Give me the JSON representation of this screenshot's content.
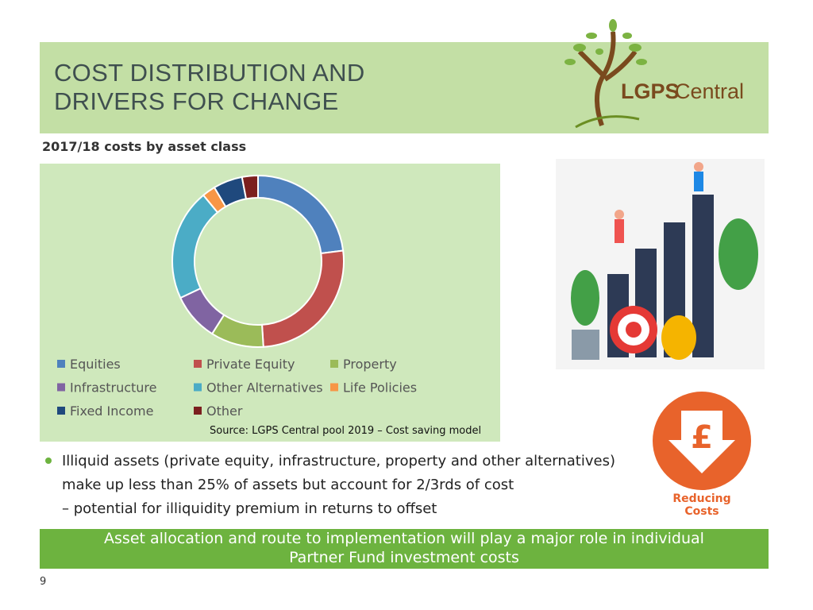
{
  "header": {
    "title_lines": [
      "COST DISTRIBUTION AND",
      "DRIVERS FOR CHANGE"
    ],
    "logo": [
      "LGPS",
      "Central"
    ]
  },
  "chart_data": {
    "type": "pie",
    "donut": true,
    "title": "2017/18 costs by asset class",
    "categories": [
      "Equities",
      "Private Equity",
      "Property",
      "Infrastructure",
      "Other Alternatives",
      "Life Policies",
      "Fixed Income",
      "Other"
    ],
    "values": [
      23,
      26,
      10,
      9,
      21,
      2.5,
      5.5,
      3
    ],
    "colors": [
      "#4f81bd",
      "#c0504d",
      "#9bbb59",
      "#8064a2",
      "#4bacc6",
      "#f79646",
      "#1f497d",
      "#7b1f1f"
    ],
    "source": "Source: LGPS Central pool 2019 – Cost saving model"
  },
  "bullet_lines": [
    "Illiquid assets (private equity, infrastructure, property and other alternatives)",
    "make up less than 25% of assets but account for 2/3rds of cost",
    "– potential for illiquidity premium in returns to offset"
  ],
  "badge": {
    "symbol": "£",
    "label_lines": [
      "Reducing",
      "Costs"
    ]
  },
  "banner": "Asset allocation and route to implementation will play a major role in individual Partner Fund investment costs",
  "page_number": "9"
}
